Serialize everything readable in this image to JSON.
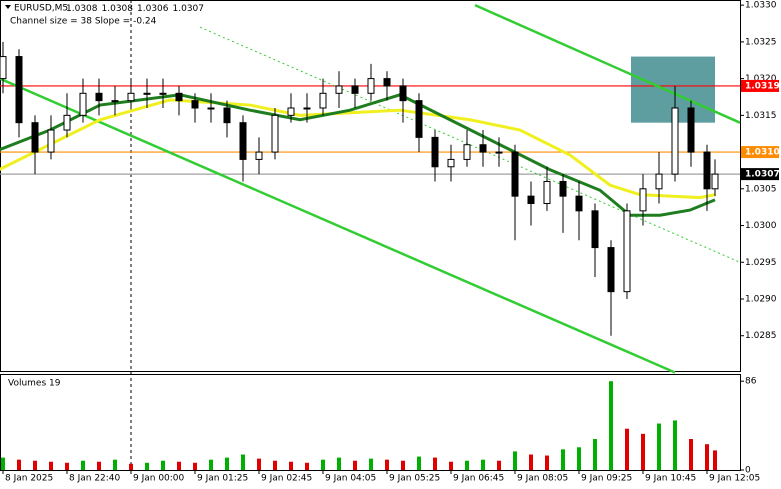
{
  "chart_data": {
    "type": "candlestick",
    "title": "EURUSD,M5",
    "ohlc": [
      1.0308,
      1.0308,
      1.0306,
      1.0307
    ],
    "subtitle": "Channel size = 38 Slope = -0.24",
    "x": [
      0,
      4,
      8,
      12,
      16,
      20,
      24,
      28,
      32,
      36,
      40,
      44,
      48,
      52,
      56,
      60,
      64,
      68,
      72,
      76,
      80,
      84,
      88,
      92,
      96,
      100,
      104,
      108,
      112,
      116,
      120,
      124,
      128,
      132,
      136,
      140,
      144,
      148,
      152,
      156,
      160,
      164,
      168,
      172,
      176,
      178
    ],
    "open": [
      1.032,
      1.0323,
      1.0314,
      1.031,
      1.0313,
      1.0315,
      1.0318,
      1.0317,
      1.0317,
      1.0318,
      1.0318,
      1.0318,
      1.0317,
      1.0316,
      1.0316,
      1.0314,
      1.0309,
      1.031,
      1.0315,
      1.0316,
      1.0316,
      1.0318,
      1.0319,
      1.0318,
      1.032,
      1.0319,
      1.0317,
      1.0312,
      1.0308,
      1.0309,
      1.0311,
      1.031,
      1.031,
      1.0304,
      1.0303,
      1.0306,
      1.0304,
      1.0302,
      1.0297,
      1.0291,
      1.0302,
      1.0305,
      1.0307,
      1.0316,
      1.031,
      1.0305
    ],
    "high": [
      1.0325,
      1.0324,
      1.0315,
      1.0315,
      1.0318,
      1.032,
      1.032,
      1.0319,
      1.032,
      1.032,
      1.032,
      1.0319,
      1.0318,
      1.0318,
      1.0317,
      1.0315,
      1.0312,
      1.0316,
      1.0318,
      1.0318,
      1.032,
      1.0321,
      1.032,
      1.0322,
      1.0321,
      1.032,
      1.0318,
      1.0313,
      1.0311,
      1.0313,
      1.0313,
      1.0312,
      1.0311,
      1.0306,
      1.0308,
      1.0307,
      1.0306,
      1.0303,
      1.0298,
      1.0303,
      1.0307,
      1.031,
      1.0319,
      1.0317,
      1.0311,
      1.0309
    ],
    "low": [
      1.0318,
      1.0312,
      1.0307,
      1.0309,
      1.0312,
      1.0314,
      1.0315,
      1.0315,
      1.0316,
      1.0316,
      1.0316,
      1.0315,
      1.0314,
      1.0314,
      1.0312,
      1.0306,
      1.0307,
      1.0309,
      1.0314,
      1.0314,
      1.0315,
      1.0316,
      1.0316,
      1.0317,
      1.0317,
      1.0314,
      1.031,
      1.0306,
      1.0306,
      1.0308,
      1.0308,
      1.0308,
      1.0298,
      1.03,
      1.0302,
      1.0299,
      1.0298,
      1.0293,
      1.0285,
      1.029,
      1.03,
      1.0303,
      1.0306,
      1.0308,
      1.0302,
      1.0304
    ],
    "close": [
      1.0323,
      1.0314,
      1.031,
      1.0313,
      1.0315,
      1.0318,
      1.0317,
      1.0317,
      1.0318,
      1.0318,
      1.0318,
      1.0317,
      1.0316,
      1.0316,
      1.0314,
      1.0309,
      1.031,
      1.0315,
      1.0316,
      1.0316,
      1.0318,
      1.0319,
      1.0318,
      1.032,
      1.0319,
      1.0317,
      1.0312,
      1.0308,
      1.0309,
      1.0311,
      1.031,
      1.031,
      1.0304,
      1.0303,
      1.0306,
      1.0304,
      1.0302,
      1.0297,
      1.0291,
      1.0302,
      1.0305,
      1.0307,
      1.0316,
      1.031,
      1.0305,
      1.0307
    ],
    "color": "#000000",
    "xlim": [
      -0.75,
      184.25
    ],
    "xticks": [
      {
        "value": 0,
        "label": "8 Jan 2025"
      },
      {
        "value": 16,
        "label": "8 Jan 22:40"
      },
      {
        "value": 32,
        "label": "9 Jan 00:00"
      },
      {
        "value": 48,
        "label": "9 Jan 01:25"
      },
      {
        "value": 64,
        "label": "9 Jan 02:45"
      },
      {
        "value": 80,
        "label": "9 Jan 04:05"
      },
      {
        "value": 96,
        "label": "9 Jan 05:25"
      },
      {
        "value": 112,
        "label": "9 Jan 06:45"
      },
      {
        "value": 128,
        "label": "9 Jan 08:05"
      },
      {
        "value": 144,
        "label": "9 Jan 09:25"
      },
      {
        "value": 160,
        "label": "9 Jan 10:45"
      },
      {
        "value": 176,
        "label": "9 Jan 12:05"
      }
    ],
    "ylim": [
      1.02802,
      1.03307
    ],
    "yticks": [
      {
        "value": 1.033,
        "label": "1.0330"
      },
      1.0325,
      {
        "value": 1.032,
        "label": "1.0320"
      },
      1.0315,
      {
        "value": 1.031,
        "label": "1.0310"
      },
      1.0305,
      {
        "value": 1.03,
        "label": "1.0300"
      },
      1.0295,
      {
        "value": 1.029,
        "label": "1.0290"
      },
      1.0285
    ],
    "session_line": 32,
    "indicators": [
      {
        "color": "#f0f020",
        "x": [
          -1,
          24.25,
          41.75,
          61.75,
          74.25,
          99.25,
          116.75,
          129.25,
          141.75,
          151.75,
          159.25,
          174.25,
          178
        ],
        "values": [
          1.03076,
          1.03144,
          1.03171,
          1.03164,
          1.0315,
          1.03157,
          1.03144,
          1.0313,
          1.03096,
          1.03055,
          1.03042,
          1.03038,
          1.03042
        ]
      },
      {
        "color": "#1e7d1e",
        "x": [
          -1,
          11.75,
          24.25,
          44.25,
          61.75,
          74.25,
          86.75,
          99.25,
          111.75,
          124.25,
          136.75,
          149.25,
          156.75,
          164.25,
          171.75,
          178
        ],
        "values": [
          1.03103,
          1.0313,
          1.03164,
          1.03178,
          1.03157,
          1.03144,
          1.03157,
          1.03178,
          1.03144,
          1.0311,
          1.03076,
          1.03048,
          1.03014,
          1.03014,
          1.03021,
          1.03035
        ]
      }
    ],
    "trend_lines": [
      {
        "color": "#32cd32",
        "style": "solid",
        "x": [
          118,
          184.25
        ],
        "values": [
          1.033,
          1.0314
        ]
      },
      {
        "color": "#32cd32",
        "style": "solid",
        "x": [
          -0.75,
          168
        ],
        "values": [
          1.032,
          1.028
        ]
      },
      {
        "color": "#32cd32",
        "style": "dotted",
        "x": [
          49.25,
          184.25
        ],
        "values": [
          1.0327,
          1.0295
        ]
      }
    ],
    "zone": {
      "color": "#5f9ea0",
      "x": [
        157,
        178
      ],
      "values": [
        1.0314,
        1.0323
      ]
    },
    "levels": [
      {
        "color": "#ff0000",
        "value": 1.0319,
        "label": "1.0319"
      },
      {
        "color": "#ff8c00",
        "value": 1.031,
        "label": "1.0310"
      },
      {
        "color": "#a0a0a0",
        "value": 1.0307,
        "label": "1.0307",
        "box": "#000000"
      }
    ],
    "volumes": {
      "title": "Volumes 19",
      "values": [
        12,
        10,
        9,
        8,
        7,
        9,
        8,
        10,
        6,
        7,
        9,
        8,
        7,
        10,
        12,
        15,
        11,
        9,
        8,
        7,
        10,
        12,
        9,
        11,
        10,
        9,
        13,
        12,
        8,
        9,
        10,
        9,
        18,
        15,
        14,
        20,
        22,
        30,
        86,
        40,
        35,
        45,
        48,
        30,
        25,
        19
      ],
      "up_color": "#00b000",
      "down_color": "#e00000",
      "ylim": [
        0,
        92
      ],
      "yticks": [
        86,
        0
      ]
    }
  }
}
